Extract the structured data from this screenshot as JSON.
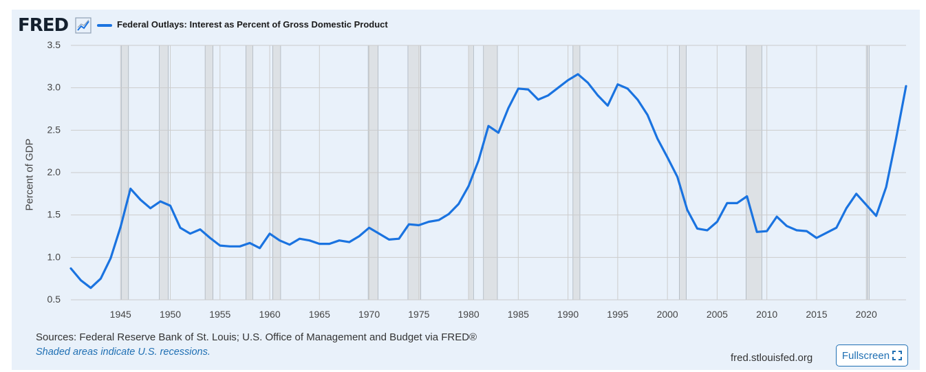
{
  "header": {
    "logo_text": "FRED",
    "logo_icon": "line-chart-icon",
    "legend_label": "Federal Outlays: Interest as Percent of Gross Domestic Product"
  },
  "footer": {
    "sources": "Sources: Federal Reserve Bank of St. Louis; U.S. Office of Management and Budget via FRED®",
    "recession_note": "Shaded areas indicate U.S. recessions.",
    "site": "fred.stlouisfed.org",
    "fullscreen_label": "Fullscreen",
    "fullscreen_icon": "expand-icon"
  },
  "colors": {
    "series": "#1a73e0",
    "recession": "#dde1e5",
    "grid": "#cccccc",
    "background": "#e9f1fa",
    "link": "#1f6fb3"
  },
  "chart_data": {
    "type": "line",
    "title": "Federal Outlays: Interest as Percent of Gross Domestic Product",
    "ylabel": "Percent of GDP",
    "xlabel": "",
    "ylim": [
      0.5,
      3.5
    ],
    "xlim": [
      1940,
      2024
    ],
    "yticks": [
      "0.5",
      "1.0",
      "1.5",
      "2.0",
      "2.5",
      "3.0",
      "3.5"
    ],
    "xticks": [
      "1945",
      "1950",
      "1955",
      "1960",
      "1965",
      "1970",
      "1975",
      "1980",
      "1985",
      "1990",
      "1995",
      "2000",
      "2005",
      "2010",
      "2015",
      "2020"
    ],
    "grid": true,
    "recessions": [
      [
        1945.1,
        1945.8
      ],
      [
        1948.9,
        1949.8
      ],
      [
        1953.5,
        1954.3
      ],
      [
        1957.6,
        1958.3
      ],
      [
        1960.3,
        1961.1
      ],
      [
        1969.9,
        1970.9
      ],
      [
        1973.9,
        1975.2
      ],
      [
        1980.0,
        1980.5
      ],
      [
        1981.5,
        1982.9
      ],
      [
        1990.5,
        1991.2
      ],
      [
        2001.2,
        2001.9
      ],
      [
        2007.9,
        2009.5
      ],
      [
        2020.1,
        2020.3
      ]
    ],
    "series": [
      {
        "name": "Federal Outlays: Interest as Percent of Gross Domestic Product",
        "x": [
          1940,
          1941,
          1942,
          1943,
          1944,
          1945,
          1946,
          1947,
          1948,
          1949,
          1950,
          1951,
          1952,
          1953,
          1954,
          1955,
          1956,
          1957,
          1958,
          1959,
          1960,
          1961,
          1962,
          1963,
          1964,
          1965,
          1966,
          1967,
          1968,
          1969,
          1970,
          1971,
          1972,
          1973,
          1974,
          1975,
          1976,
          1977,
          1978,
          1979,
          1980,
          1981,
          1982,
          1983,
          1984,
          1985,
          1986,
          1987,
          1988,
          1989,
          1990,
          1991,
          1992,
          1993,
          1994,
          1995,
          1996,
          1997,
          1998,
          1999,
          2000,
          2001,
          2002,
          2003,
          2004,
          2005,
          2006,
          2007,
          2008,
          2009,
          2010,
          2011,
          2012,
          2013,
          2014,
          2015,
          2016,
          2017,
          2018,
          2019,
          2020,
          2021,
          2022,
          2023,
          2024
        ],
        "values": [
          0.87,
          0.73,
          0.64,
          0.75,
          0.99,
          1.36,
          1.81,
          1.68,
          1.58,
          1.66,
          1.61,
          1.35,
          1.28,
          1.33,
          1.23,
          1.14,
          1.13,
          1.13,
          1.17,
          1.11,
          1.28,
          1.2,
          1.15,
          1.22,
          1.2,
          1.16,
          1.16,
          1.2,
          1.18,
          1.25,
          1.35,
          1.28,
          1.21,
          1.22,
          1.39,
          1.38,
          1.42,
          1.44,
          1.51,
          1.63,
          1.84,
          2.14,
          2.55,
          2.47,
          2.76,
          2.99,
          2.98,
          2.86,
          2.91,
          3.0,
          3.09,
          3.16,
          3.06,
          2.91,
          2.79,
          3.04,
          2.99,
          2.86,
          2.68,
          2.4,
          2.18,
          1.95,
          1.56,
          1.34,
          1.32,
          1.42,
          1.64,
          1.64,
          1.72,
          1.3,
          1.31,
          1.48,
          1.37,
          1.32,
          1.31,
          1.23,
          1.29,
          1.35,
          1.58,
          1.75,
          1.62,
          1.49,
          1.83,
          2.4,
          3.02
        ]
      }
    ]
  }
}
